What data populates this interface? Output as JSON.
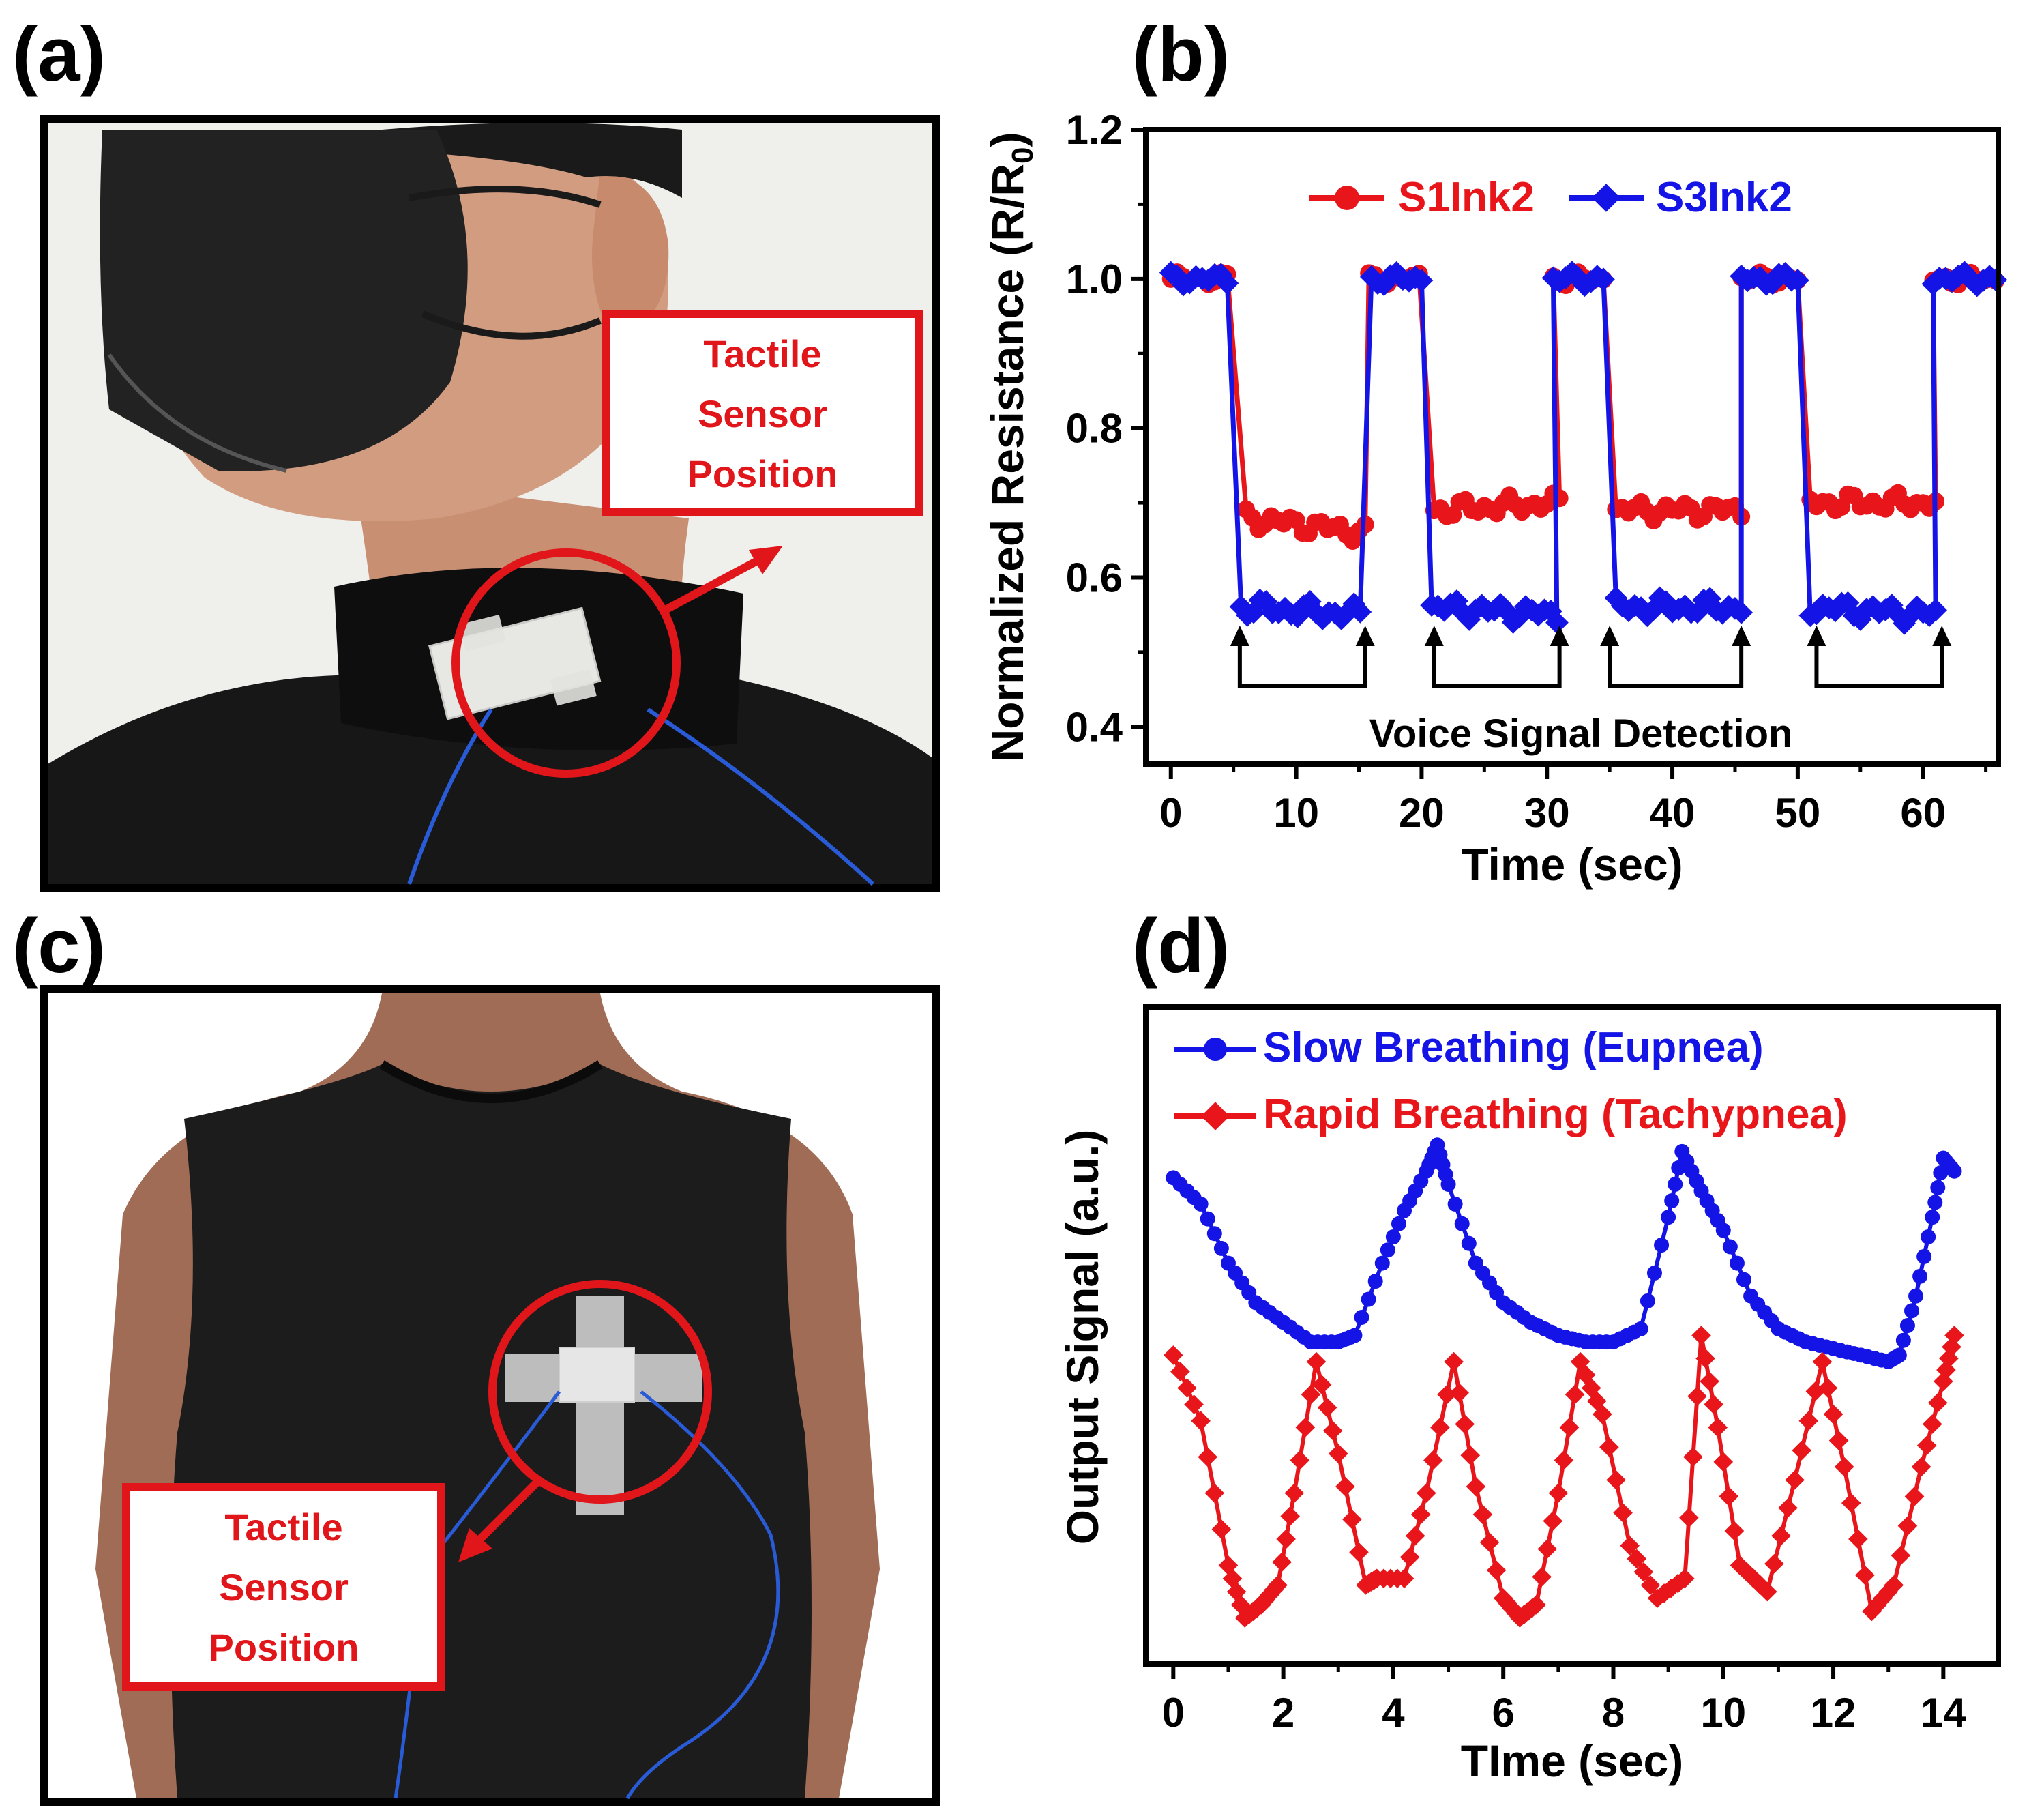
{
  "panels": {
    "a": {
      "label": "(a)",
      "callout": [
        "Tactile",
        "Sensor",
        "Position"
      ]
    },
    "b": {
      "label": "(b)"
    },
    "c": {
      "label": "(c)",
      "callout": [
        "Tactile",
        "Sensor",
        "Position"
      ]
    },
    "d": {
      "label": "(d)"
    }
  },
  "colors": {
    "red": "#e8161b",
    "blue": "#1414e6",
    "callout_red": "#e0161b"
  },
  "chart_data": [
    {
      "panel": "b",
      "type": "line",
      "xlabel": "Time (sec)",
      "ylabel": "Normalized Resistance (R/R0)",
      "ylabel_main": "Normalized Resistance (R/R",
      "ylabel_sub": "0",
      "ylabel_end": ")",
      "xlim": [
        -2,
        66
      ],
      "ylim": [
        0.35,
        1.2
      ],
      "xticks": [
        0,
        10,
        20,
        30,
        40,
        50,
        60
      ],
      "yticks": [
        0.4,
        0.6,
        0.8,
        1.0,
        1.2
      ],
      "ytick_labels": [
        "0.4",
        "0.6",
        "0.8",
        "1.0",
        "1.2"
      ],
      "legend": {
        "placement": "top",
        "entries": [
          "S1Ink2",
          "S3Ink2"
        ]
      },
      "annotation": "Voice Signal Detection",
      "brackets": [
        [
          5.5,
          15.5
        ],
        [
          21,
          31
        ],
        [
          35,
          45.5
        ],
        [
          51.5,
          61.5
        ]
      ],
      "series": [
        {
          "name": "S1Ink2",
          "color": "#e8161b",
          "marker": "circle",
          "low_segments": [
            {
              "x0": 6,
              "x1": 15.5,
              "y0": 0.68,
              "y1": 0.66
            },
            {
              "x0": 21,
              "x1": 31,
              "y0": 0.69,
              "y1": 0.7
            },
            {
              "x0": 35.5,
              "x1": 45.5,
              "y0": 0.69,
              "y1": 0.69
            },
            {
              "x0": 51,
              "x1": 61,
              "y0": 0.7,
              "y1": 0.7
            }
          ],
          "high_segments": [
            [
              0,
              4.5
            ],
            [
              15.8,
              20
            ],
            [
              30.5,
              34.5
            ],
            [
              45.5,
              50.3
            ],
            [
              60.8,
              66
            ]
          ]
        },
        {
          "name": "S3Ink2",
          "color": "#1414e6",
          "marker": "diamond",
          "low_segments": [
            {
              "x0": 5.6,
              "x1": 15.5,
              "y0": 0.56,
              "y1": 0.55
            },
            {
              "x0": 20.8,
              "x1": 31,
              "y0": 0.56,
              "y1": 0.55
            },
            {
              "x0": 35.5,
              "x1": 45.5,
              "y0": 0.56,
              "y1": 0.56
            },
            {
              "x0": 51,
              "x1": 61,
              "y0": 0.56,
              "y1": 0.55
            }
          ],
          "high_segments": [
            [
              0,
              4.5
            ],
            [
              16,
              20
            ],
            [
              30.5,
              34.5
            ],
            [
              45.5,
              50.3
            ],
            [
              60.8,
              66
            ]
          ]
        }
      ]
    },
    {
      "panel": "d",
      "type": "line",
      "xlabel": "TIme (sec)",
      "ylabel": "Output Signal (a.u.)",
      "xlim": [
        -0.5,
        15
      ],
      "ylim": [
        0,
        10
      ],
      "xticks": [
        0,
        2,
        4,
        6,
        8,
        10,
        12,
        14
      ],
      "yticks": [],
      "legend": {
        "placement": "top-left",
        "entries": [
          "Slow Breathing (Eupnea)",
          "Rapid Breathing (Tachypnea)"
        ]
      },
      "series": [
        {
          "name": "Slow Breathing (Eupnea)",
          "color": "#1414e6",
          "marker": "circle",
          "x": [
            0,
            0.5,
            1.0,
            1.5,
            2.0,
            2.5,
            3.0,
            3.3,
            3.8,
            4.2,
            4.6,
            4.8,
            5.0,
            5.5,
            6.0,
            6.5,
            7.0,
            7.5,
            8.0,
            8.5,
            9.0,
            9.25,
            9.6,
            10.0,
            10.5,
            11.0,
            11.5,
            12.0,
            12.5,
            13.0,
            13.2,
            13.5,
            13.8,
            14.0,
            14.2
          ],
          "y": [
            7.4,
            7.0,
            6.1,
            5.5,
            5.2,
            4.9,
            4.9,
            5.0,
            6.1,
            6.9,
            7.5,
            7.9,
            7.3,
            6.1,
            5.5,
            5.2,
            5.0,
            4.9,
            4.9,
            5.1,
            6.8,
            7.8,
            7.2,
            6.6,
            5.6,
            5.1,
            4.9,
            4.8,
            4.7,
            4.6,
            4.7,
            5.6,
            6.8,
            7.7,
            7.5
          ]
        },
        {
          "name": "Rapid Breathing (Tachypnea)",
          "color": "#e8161b",
          "marker": "diamond",
          "x": [
            0,
            0.5,
            1.0,
            1.3,
            1.6,
            1.9,
            2.2,
            2.6,
            3.0,
            3.5,
            3.7,
            4.2,
            4.6,
            5.1,
            5.5,
            6.0,
            6.3,
            6.6,
            7.0,
            7.4,
            7.8,
            8.3,
            8.8,
            9.3,
            9.6,
            9.9,
            10.3,
            10.8,
            11.3,
            11.8,
            12.2,
            12.7,
            13.1,
            13.6,
            14.0,
            14.2
          ],
          "y": [
            4.7,
            3.7,
            1.5,
            0.7,
            0.9,
            1.2,
            2.6,
            4.6,
            3.2,
            1.2,
            1.3,
            1.3,
            2.6,
            4.6,
            2.7,
            1.0,
            0.7,
            0.9,
            2.6,
            4.6,
            3.8,
            1.8,
            1.0,
            1.3,
            5.0,
            3.6,
            1.5,
            1.1,
            2.8,
            4.6,
            3.0,
            0.8,
            1.2,
            3.0,
            4.3,
            5.0
          ]
        }
      ]
    }
  ]
}
